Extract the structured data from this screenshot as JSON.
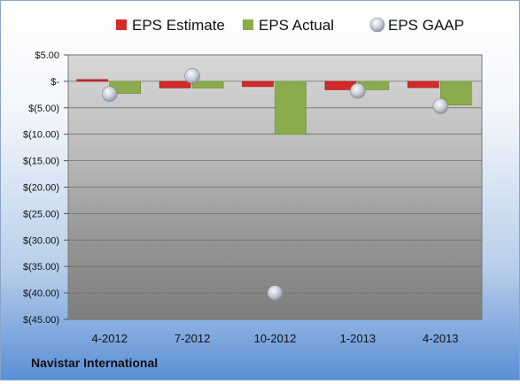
{
  "company": "Navistar International",
  "chart_data": {
    "type": "bar",
    "categories": [
      "4-2012",
      "7-2012",
      "10-2012",
      "1-2013",
      "4-2013"
    ],
    "series": [
      {
        "name": "EPS Estimate",
        "kind": "bar",
        "color": "#d42a2a",
        "values": [
          0.35,
          -1.25,
          -1.0,
          -1.6,
          -1.2
        ]
      },
      {
        "name": "EPS Actual",
        "kind": "bar",
        "color": "#8aac4c",
        "values": [
          -2.3,
          -1.3,
          -10.0,
          -1.6,
          -4.5
        ]
      },
      {
        "name": "EPS GAAP",
        "kind": "point",
        "color": "#c8cdd6",
        "values": [
          -2.4,
          1.0,
          -40.0,
          -1.8,
          -4.7
        ]
      }
    ],
    "y_ticks": [
      5,
      0,
      -5,
      -10,
      -15,
      -20,
      -25,
      -30,
      -35,
      -40,
      -45
    ],
    "y_tick_labels": [
      "$5.00",
      "$-",
      "$(5.00)",
      "$(10.00)",
      "$(15.00)",
      "$(20.00)",
      "$(25.00)",
      "$(30.00)",
      "$(35.00)",
      "$(40.00)",
      "$(45.00)"
    ],
    "ylim": [
      -45,
      5
    ],
    "title": "",
    "xlabel": "",
    "ylabel": "",
    "legend_position": "top",
    "grid": true
  }
}
